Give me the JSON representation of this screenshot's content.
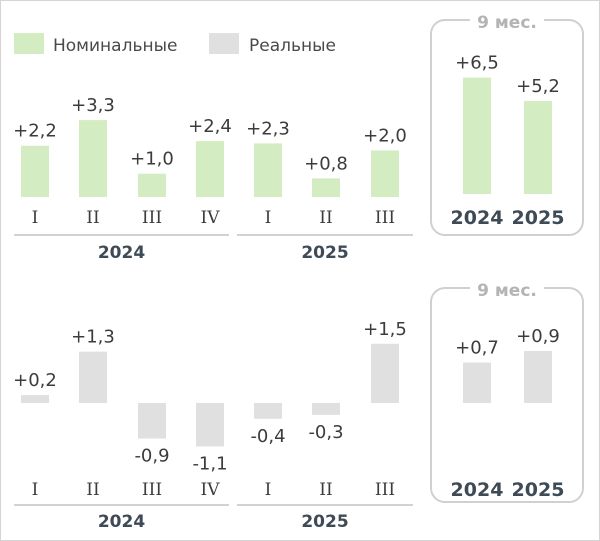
{
  "legend": {
    "nominal_label": "Номинальные",
    "real_label": "Реальные",
    "nominal_color": "#d4ecc1",
    "real_color": "#e0e0e0"
  },
  "chart_data": [
    {
      "type": "bar",
      "title": "Номинальные",
      "color": "#d4ecc1",
      "groups": [
        {
          "year": "2024",
          "categories": [
            "I",
            "II",
            "III",
            "IV"
          ],
          "values": [
            2.2,
            3.3,
            1.0,
            2.4
          ],
          "labels": [
            "+2,2",
            "+3,3",
            "+1,0",
            "+2,4"
          ]
        },
        {
          "year": "2025",
          "categories": [
            "I",
            "II",
            "III"
          ],
          "values": [
            2.3,
            0.8,
            2.0
          ],
          "labels": [
            "+2,3",
            "+0,8",
            "+2,0"
          ]
        }
      ],
      "summary": {
        "title": "9 мес.",
        "categories": [
          "2024",
          "2025"
        ],
        "values": [
          6.5,
          5.2
        ],
        "labels": [
          "+6,5",
          "+5,2"
        ]
      }
    },
    {
      "type": "bar",
      "title": "Реальные",
      "color": "#e0e0e0",
      "groups": [
        {
          "year": "2024",
          "categories": [
            "I",
            "II",
            "III",
            "IV"
          ],
          "values": [
            0.2,
            1.3,
            -0.9,
            -1.1
          ],
          "labels": [
            "+0,2",
            "+1,3",
            "-0,9",
            "-1,1"
          ]
        },
        {
          "year": "2025",
          "categories": [
            "I",
            "II",
            "III"
          ],
          "values": [
            -0.4,
            -0.3,
            1.5
          ],
          "labels": [
            "-0,4",
            "-0,3",
            "+1,5"
          ]
        }
      ],
      "summary": {
        "title": "9 мес.",
        "categories": [
          "2024",
          "2025"
        ],
        "values": [
          0.7,
          0.9
        ],
        "labels": [
          "+0,7",
          "+0,9"
        ]
      }
    }
  ]
}
